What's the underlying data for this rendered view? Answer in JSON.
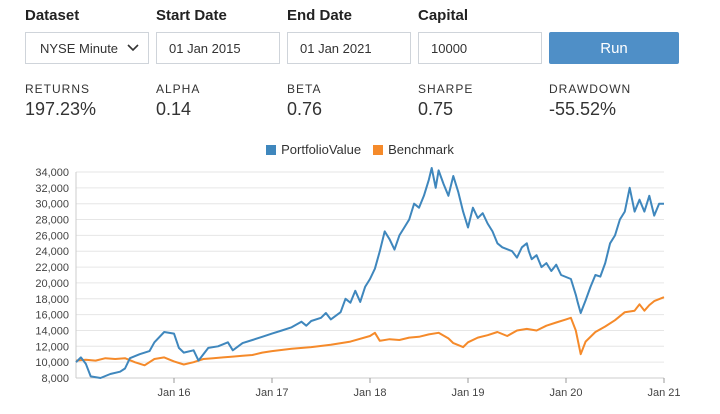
{
  "form": {
    "dataset_label": "Dataset",
    "dataset_value": "NYSE Minute",
    "start_label": "Start Date",
    "start_value": "01 Jan 2015",
    "end_label": "End Date",
    "end_value": "01 Jan 2021",
    "capital_label": "Capital",
    "capital_value": "10000",
    "run_label": "Run",
    "chevron_icon": "chevron-down-icon"
  },
  "metrics": [
    {
      "label": "RETURNS",
      "value": "197.23%"
    },
    {
      "label": "ALPHA",
      "value": "0.14"
    },
    {
      "label": "BETA",
      "value": "0.76"
    },
    {
      "label": "SHARPE",
      "value": "0.75"
    },
    {
      "label": "DRAWDOWN",
      "value": "-55.52%"
    }
  ],
  "chart_data": {
    "type": "line",
    "legend_position": "top-center",
    "grid": "horizontal",
    "ylim": [
      8000,
      34000
    ],
    "yticks": [
      "8,000",
      "10,000",
      "12,000",
      "14,000",
      "16,000",
      "18,000",
      "20,000",
      "22,000",
      "24,000",
      "26,000",
      "28,000",
      "30,000",
      "32,000",
      "34,000"
    ],
    "xlim": [
      2015.0,
      2021.0
    ],
    "xticks": [
      {
        "x": 2016,
        "label": "Jan 16"
      },
      {
        "x": 2017,
        "label": "Jan 17"
      },
      {
        "x": 2018,
        "label": "Jan 18"
      },
      {
        "x": 2019,
        "label": "Jan 19"
      },
      {
        "x": 2020,
        "label": "Jan 20"
      },
      {
        "x": 2021,
        "label": "Jan 21"
      }
    ],
    "series": [
      {
        "name": "PortfolioValue",
        "color": "#3f87bd",
        "points": [
          [
            2015.0,
            10000
          ],
          [
            2015.05,
            10600
          ],
          [
            2015.1,
            9800
          ],
          [
            2015.15,
            8200
          ],
          [
            2015.25,
            8000
          ],
          [
            2015.35,
            8500
          ],
          [
            2015.45,
            8800
          ],
          [
            2015.5,
            9200
          ],
          [
            2015.55,
            10500
          ],
          [
            2015.65,
            11000
          ],
          [
            2015.75,
            11400
          ],
          [
            2015.8,
            12500
          ],
          [
            2015.9,
            13800
          ],
          [
            2016.0,
            13600
          ],
          [
            2016.05,
            11800
          ],
          [
            2016.1,
            11200
          ],
          [
            2016.2,
            11500
          ],
          [
            2016.25,
            10200
          ],
          [
            2016.35,
            11800
          ],
          [
            2016.45,
            12000
          ],
          [
            2016.55,
            12500
          ],
          [
            2016.6,
            11500
          ],
          [
            2016.7,
            12400
          ],
          [
            2016.8,
            12800
          ],
          [
            2016.9,
            13200
          ],
          [
            2017.0,
            13600
          ],
          [
            2017.1,
            14000
          ],
          [
            2017.2,
            14400
          ],
          [
            2017.3,
            15100
          ],
          [
            2017.35,
            14600
          ],
          [
            2017.4,
            15200
          ],
          [
            2017.5,
            15600
          ],
          [
            2017.55,
            16200
          ],
          [
            2017.6,
            15400
          ],
          [
            2017.7,
            16300
          ],
          [
            2017.75,
            18000
          ],
          [
            2017.8,
            17500
          ],
          [
            2017.85,
            19000
          ],
          [
            2017.9,
            17600
          ],
          [
            2017.95,
            19500
          ],
          [
            2018.0,
            20500
          ],
          [
            2018.05,
            21800
          ],
          [
            2018.1,
            24000
          ],
          [
            2018.15,
            26500
          ],
          [
            2018.2,
            25500
          ],
          [
            2018.25,
            24200
          ],
          [
            2018.3,
            26000
          ],
          [
            2018.35,
            27000
          ],
          [
            2018.4,
            28000
          ],
          [
            2018.45,
            30000
          ],
          [
            2018.5,
            29500
          ],
          [
            2018.55,
            31000
          ],
          [
            2018.6,
            33000
          ],
          [
            2018.63,
            34500
          ],
          [
            2018.67,
            32000
          ],
          [
            2018.7,
            34200
          ],
          [
            2018.75,
            32500
          ],
          [
            2018.8,
            31000
          ],
          [
            2018.85,
            33500
          ],
          [
            2018.9,
            31500
          ],
          [
            2018.95,
            29000
          ],
          [
            2019.0,
            27000
          ],
          [
            2019.05,
            29500
          ],
          [
            2019.1,
            28200
          ],
          [
            2019.15,
            28800
          ],
          [
            2019.2,
            27500
          ],
          [
            2019.25,
            26500
          ],
          [
            2019.3,
            25000
          ],
          [
            2019.35,
            24500
          ],
          [
            2019.45,
            24000
          ],
          [
            2019.5,
            23200
          ],
          [
            2019.55,
            24500
          ],
          [
            2019.6,
            25000
          ],
          [
            2019.62,
            24000
          ],
          [
            2019.65,
            23000
          ],
          [
            2019.7,
            23500
          ],
          [
            2019.75,
            22000
          ],
          [
            2019.8,
            22500
          ],
          [
            2019.85,
            21500
          ],
          [
            2019.9,
            22300
          ],
          [
            2019.95,
            21000
          ],
          [
            2020.05,
            20500
          ],
          [
            2020.1,
            18500
          ],
          [
            2020.12,
            17500
          ],
          [
            2020.15,
            16200
          ],
          [
            2020.2,
            17800
          ],
          [
            2020.25,
            19500
          ],
          [
            2020.3,
            21000
          ],
          [
            2020.35,
            20800
          ],
          [
            2020.4,
            22500
          ],
          [
            2020.45,
            25000
          ],
          [
            2020.5,
            26000
          ],
          [
            2020.55,
            28000
          ],
          [
            2020.6,
            29000
          ],
          [
            2020.65,
            32000
          ],
          [
            2020.7,
            29000
          ],
          [
            2020.75,
            30500
          ],
          [
            2020.8,
            29000
          ],
          [
            2020.85,
            31000
          ],
          [
            2020.9,
            28500
          ],
          [
            2020.95,
            30000
          ],
          [
            2021.0,
            30000
          ]
        ]
      },
      {
        "name": "Benchmark",
        "color": "#f58a2a",
        "points": [
          [
            2015.0,
            10200
          ],
          [
            2015.1,
            10300
          ],
          [
            2015.2,
            10200
          ],
          [
            2015.3,
            10500
          ],
          [
            2015.4,
            10400
          ],
          [
            2015.5,
            10500
          ],
          [
            2015.6,
            10000
          ],
          [
            2015.7,
            9600
          ],
          [
            2015.8,
            10400
          ],
          [
            2015.9,
            10600
          ],
          [
            2016.0,
            10100
          ],
          [
            2016.1,
            9700
          ],
          [
            2016.2,
            10000
          ],
          [
            2016.3,
            10400
          ],
          [
            2016.4,
            10500
          ],
          [
            2016.5,
            10600
          ],
          [
            2016.6,
            10700
          ],
          [
            2016.7,
            10800
          ],
          [
            2016.8,
            10900
          ],
          [
            2016.9,
            11200
          ],
          [
            2017.0,
            11400
          ],
          [
            2017.2,
            11700
          ],
          [
            2017.4,
            11900
          ],
          [
            2017.6,
            12200
          ],
          [
            2017.8,
            12600
          ],
          [
            2018.0,
            13300
          ],
          [
            2018.05,
            13700
          ],
          [
            2018.1,
            12700
          ],
          [
            2018.2,
            12900
          ],
          [
            2018.3,
            12800
          ],
          [
            2018.4,
            13100
          ],
          [
            2018.5,
            13200
          ],
          [
            2018.6,
            13500
          ],
          [
            2018.7,
            13700
          ],
          [
            2018.8,
            13000
          ],
          [
            2018.85,
            12400
          ],
          [
            2018.95,
            11900
          ],
          [
            2019.0,
            12500
          ],
          [
            2019.1,
            13100
          ],
          [
            2019.2,
            13400
          ],
          [
            2019.3,
            13800
          ],
          [
            2019.4,
            13300
          ],
          [
            2019.5,
            14000
          ],
          [
            2019.6,
            14200
          ],
          [
            2019.7,
            14000
          ],
          [
            2019.8,
            14600
          ],
          [
            2019.9,
            15000
          ],
          [
            2020.0,
            15400
          ],
          [
            2020.05,
            15600
          ],
          [
            2020.1,
            14000
          ],
          [
            2020.15,
            11000
          ],
          [
            2020.2,
            12600
          ],
          [
            2020.3,
            13800
          ],
          [
            2020.4,
            14500
          ],
          [
            2020.5,
            15300
          ],
          [
            2020.6,
            16300
          ],
          [
            2020.7,
            16500
          ],
          [
            2020.75,
            17300
          ],
          [
            2020.8,
            16500
          ],
          [
            2020.85,
            17200
          ],
          [
            2020.9,
            17700
          ],
          [
            2021.0,
            18200
          ]
        ]
      }
    ]
  }
}
